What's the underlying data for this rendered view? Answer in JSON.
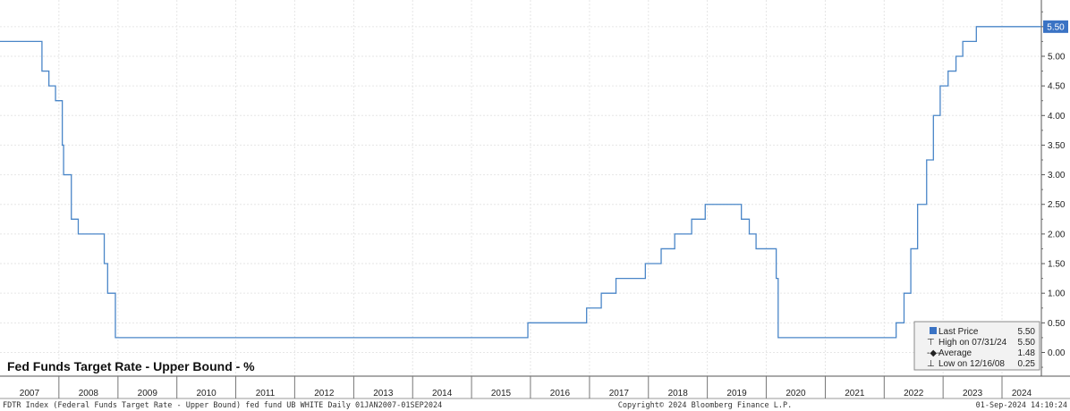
{
  "chart_data": {
    "type": "line",
    "title": "Fed Funds Target Rate - Upper Bound - %",
    "x_tick_labels": [
      "2007",
      "2008",
      "2009",
      "2010",
      "2011",
      "2012",
      "2013",
      "2014",
      "2015",
      "2016",
      "2017",
      "2018",
      "2019",
      "2020",
      "2021",
      "2022",
      "2023",
      "2024"
    ],
    "y_tick_labels": [
      "0.00",
      "0.50",
      "1.00",
      "1.50",
      "2.00",
      "2.50",
      "3.00",
      "3.50",
      "4.00",
      "4.50",
      "5.00",
      "5.50"
    ],
    "ylim": [
      -0.4,
      5.95
    ],
    "xlim": [
      "2007-01-01",
      "2024-09-01"
    ],
    "grid": true,
    "line_color": "#4a86c8",
    "series": [
      {
        "points": [
          [
            "2007-01-01",
            5.25
          ],
          [
            "2007-09-18",
            4.75
          ],
          [
            "2007-10-31",
            4.5
          ],
          [
            "2007-12-11",
            4.25
          ],
          [
            "2008-01-22",
            3.5
          ],
          [
            "2008-01-30",
            3.0
          ],
          [
            "2008-03-18",
            2.25
          ],
          [
            "2008-04-30",
            2.0
          ],
          [
            "2008-10-08",
            1.5
          ],
          [
            "2008-10-29",
            1.0
          ],
          [
            "2008-12-16",
            0.25
          ],
          [
            "2015-12-16",
            0.5
          ],
          [
            "2016-12-14",
            0.75
          ],
          [
            "2017-03-15",
            1.0
          ],
          [
            "2017-06-14",
            1.25
          ],
          [
            "2017-12-13",
            1.5
          ],
          [
            "2018-03-21",
            1.75
          ],
          [
            "2018-06-13",
            2.0
          ],
          [
            "2018-09-26",
            2.25
          ],
          [
            "2018-12-19",
            2.5
          ],
          [
            "2019-07-31",
            2.25
          ],
          [
            "2019-09-18",
            2.0
          ],
          [
            "2019-10-30",
            1.75
          ],
          [
            "2020-03-03",
            1.25
          ],
          [
            "2020-03-15",
            0.25
          ],
          [
            "2022-03-16",
            0.5
          ],
          [
            "2022-05-04",
            1.0
          ],
          [
            "2022-06-15",
            1.75
          ],
          [
            "2022-07-27",
            2.5
          ],
          [
            "2022-09-21",
            3.25
          ],
          [
            "2022-11-02",
            4.0
          ],
          [
            "2022-12-14",
            4.5
          ],
          [
            "2023-02-01",
            4.75
          ],
          [
            "2023-03-22",
            5.0
          ],
          [
            "2023-05-03",
            5.25
          ],
          [
            "2023-07-26",
            5.5
          ],
          [
            "2024-09-01",
            5.5
          ]
        ]
      }
    ],
    "legend": {
      "placement": "bottom-right",
      "entries": [
        {
          "label": "Last Price",
          "value": "5.50"
        },
        {
          "label": "High on 07/31/24",
          "value": "5.50"
        },
        {
          "label": "Average",
          "value": "1.48"
        },
        {
          "label": "Low on 12/16/08",
          "value": "0.25"
        }
      ]
    },
    "last_value_tag": "5.50"
  },
  "footer": {
    "left": "FDTR Index (Federal Funds Target Rate - Upper Bound) fed fund UB WHITE  Daily 01JAN2007-01SEP2024",
    "center": "Copyright© 2024 Bloomberg Finance L.P.",
    "right": "01-Sep-2024 14:10:24"
  }
}
